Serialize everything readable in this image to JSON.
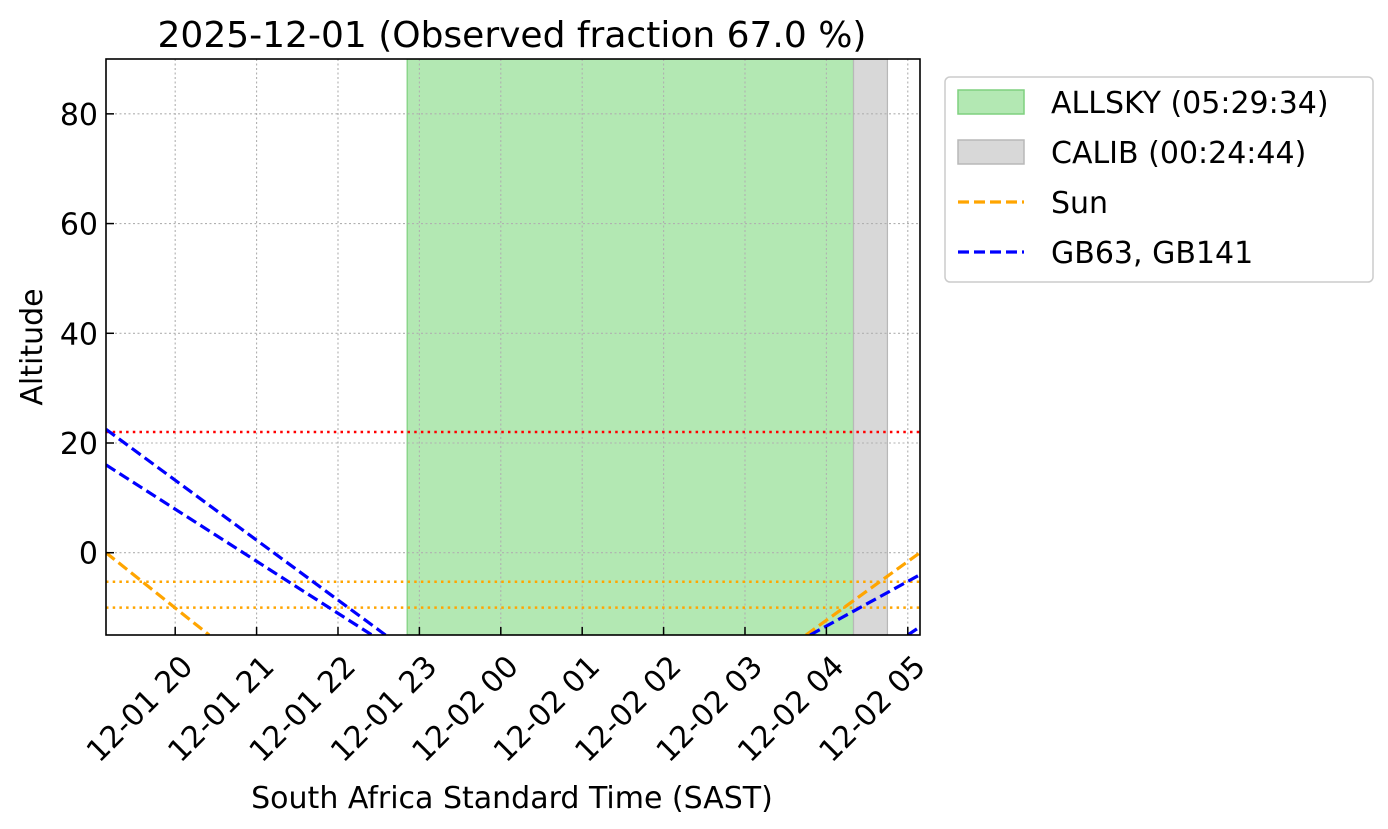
{
  "chart_data": {
    "type": "line",
    "title": "2025-12-01 (Observed fraction 67.0 %)",
    "xlabel": "South Africa Standard Time (SAST)",
    "ylabel": "Altitude",
    "x_range": [
      "2025-12-01 19:09",
      "2025-12-02 05:09"
    ],
    "ylim": [
      -15,
      90
    ],
    "x_ticks": [
      {
        "time": "2025-12-01 20:00",
        "label": "12-01 20"
      },
      {
        "time": "2025-12-01 21:00",
        "label": "12-01 21"
      },
      {
        "time": "2025-12-01 22:00",
        "label": "12-01 22"
      },
      {
        "time": "2025-12-01 23:00",
        "label": "12-01 23"
      },
      {
        "time": "2025-12-02 00:00",
        "label": "12-02 00"
      },
      {
        "time": "2025-12-02 01:00",
        "label": "12-02 01"
      },
      {
        "time": "2025-12-02 02:00",
        "label": "12-02 02"
      },
      {
        "time": "2025-12-02 03:00",
        "label": "12-02 03"
      },
      {
        "time": "2025-12-02 04:00",
        "label": "12-02 04"
      },
      {
        "time": "2025-12-02 05:00",
        "label": "12-02 05"
      }
    ],
    "y_ticks": [
      {
        "value": 0,
        "label": "0"
      },
      {
        "value": 20,
        "label": "20"
      },
      {
        "value": 40,
        "label": "40"
      },
      {
        "value": 60,
        "label": "60"
      },
      {
        "value": 80,
        "label": "80"
      }
    ],
    "grid": true,
    "legend_position": "outside-right",
    "spans": [
      {
        "label": "ALLSKY (05:29:34)",
        "start": "2025-12-01 22:51",
        "end": "2025-12-02 04:20",
        "color": "#b3e8b3",
        "edge_color": "#7fd07f"
      },
      {
        "label": "CALIB (00:24:44)",
        "start": "2025-12-02 04:20",
        "end": "2025-12-02 04:45",
        "color": "#d8d8d8",
        "edge_color": "#b8b8b8"
      }
    ],
    "hlines": [
      {
        "value": 22,
        "color": "#ff0000"
      },
      {
        "value": -5.3,
        "color": "#ffa500"
      },
      {
        "value": -10,
        "color": "#ffa500"
      }
    ],
    "series": [
      {
        "name": "Sun",
        "color": "#ffa500",
        "points": [
          {
            "time": "2025-12-01 19:09",
            "alt": 0
          },
          {
            "time": "2025-12-01 20:25",
            "alt": -15
          }
        ]
      },
      {
        "name": "Sun",
        "color": "#ffa500",
        "show_in_legend": false,
        "points": [
          {
            "time": "2025-12-02 03:45",
            "alt": -15
          },
          {
            "time": "2025-12-02 05:09",
            "alt": 0
          }
        ]
      },
      {
        "name": "GB63, GB141",
        "color": "#0000ff",
        "points": [
          {
            "time": "2025-12-01 19:09",
            "alt": 22.5
          },
          {
            "time": "2025-12-01 22:35",
            "alt": -15
          }
        ]
      },
      {
        "name": "GB63, GB141",
        "color": "#0000ff",
        "show_in_legend": false,
        "points": [
          {
            "time": "2025-12-01 19:09",
            "alt": 16
          },
          {
            "time": "2025-12-01 22:25",
            "alt": -15
          }
        ]
      },
      {
        "name": "GB63, GB141",
        "color": "#0000ff",
        "show_in_legend": false,
        "points": [
          {
            "time": "2025-12-02 03:48",
            "alt": -15
          },
          {
            "time": "2025-12-02 05:09",
            "alt": -4
          }
        ]
      },
      {
        "name": "GB63, GB141",
        "color": "#0000ff",
        "show_in_legend": false,
        "points": [
          {
            "time": "2025-12-02 05:00",
            "alt": -15
          },
          {
            "time": "2025-12-02 05:09",
            "alt": -13.5
          }
        ]
      }
    ],
    "legend": [
      {
        "kind": "patch",
        "label": "ALLSKY (05:29:34)",
        "color": "#b3e8b3",
        "edge_color": "#7fd07f"
      },
      {
        "kind": "patch",
        "label": "CALIB (00:24:44)",
        "color": "#d8d8d8",
        "edge_color": "#b8b8b8"
      },
      {
        "kind": "line",
        "label": "Sun",
        "color": "#ffa500"
      },
      {
        "kind": "line",
        "label": "GB63, GB141",
        "color": "#0000ff"
      }
    ]
  }
}
